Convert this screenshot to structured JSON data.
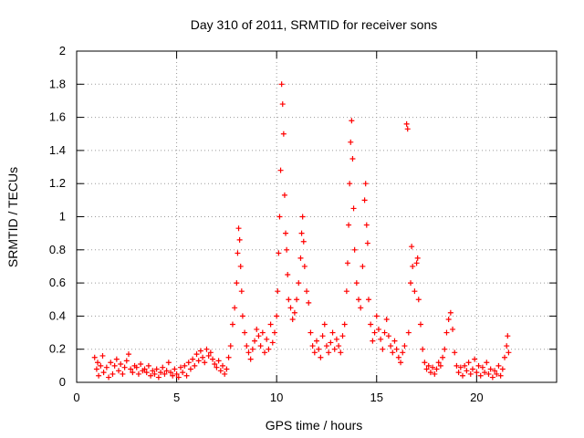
{
  "chart_data": {
    "type": "scatter",
    "title": "Day 310 of 2011, SRMTID for receiver sons",
    "xlabel": "GPS time / hours",
    "ylabel": "SRMTID / TECUs",
    "xlim": [
      0,
      24
    ],
    "ylim": [
      0,
      2
    ],
    "xticks": [
      0,
      5,
      10,
      15,
      20
    ],
    "yticks": [
      0,
      0.2,
      0.4,
      0.6,
      0.8,
      1,
      1.2,
      1.4,
      1.6,
      1.8,
      2
    ],
    "ytick_labels": [
      "0",
      "0.2",
      "0.4",
      "0.6",
      "0.8",
      "1",
      "1.2",
      "1.4",
      "1.6",
      "1.8",
      "2"
    ],
    "grid": true,
    "marker": "+",
    "color": "#ff0000",
    "series": [
      {
        "name": "SRMTID",
        "points": [
          [
            0.9,
            0.15
          ],
          [
            1.0,
            0.08
          ],
          [
            1.05,
            0.12
          ],
          [
            1.1,
            0.04
          ],
          [
            1.2,
            0.1
          ],
          [
            1.3,
            0.16
          ],
          [
            1.35,
            0.06
          ],
          [
            1.5,
            0.09
          ],
          [
            1.6,
            0.03
          ],
          [
            1.7,
            0.12
          ],
          [
            1.8,
            0.05
          ],
          [
            1.9,
            0.1
          ],
          [
            2.0,
            0.14
          ],
          [
            2.1,
            0.07
          ],
          [
            2.2,
            0.11
          ],
          [
            2.3,
            0.05
          ],
          [
            2.4,
            0.09
          ],
          [
            2.5,
            0.13
          ],
          [
            2.6,
            0.17
          ],
          [
            2.7,
            0.08
          ],
          [
            2.8,
            0.06
          ],
          [
            2.9,
            0.1
          ],
          [
            3.0,
            0.09
          ],
          [
            3.1,
            0.05
          ],
          [
            3.2,
            0.11
          ],
          [
            3.3,
            0.07
          ],
          [
            3.4,
            0.08
          ],
          [
            3.5,
            0.06
          ],
          [
            3.6,
            0.1
          ],
          [
            3.7,
            0.04
          ],
          [
            3.8,
            0.07
          ],
          [
            3.9,
            0.05
          ],
          [
            4.0,
            0.08
          ],
          [
            4.1,
            0.03
          ],
          [
            4.2,
            0.06
          ],
          [
            4.3,
            0.09
          ],
          [
            4.4,
            0.05
          ],
          [
            4.5,
            0.07
          ],
          [
            4.6,
            0.12
          ],
          [
            4.7,
            0.06
          ],
          [
            4.8,
            0.04
          ],
          [
            4.9,
            0.08
          ],
          [
            5.0,
            0.05
          ],
          [
            5.1,
            0.03
          ],
          [
            5.2,
            0.09
          ],
          [
            5.3,
            0.06
          ],
          [
            5.4,
            0.1
          ],
          [
            5.5,
            0.04
          ],
          [
            5.6,
            0.12
          ],
          [
            5.7,
            0.08
          ],
          [
            5.8,
            0.14
          ],
          [
            5.9,
            0.1
          ],
          [
            6.0,
            0.17
          ],
          [
            6.1,
            0.13
          ],
          [
            6.2,
            0.19
          ],
          [
            6.3,
            0.15
          ],
          [
            6.4,
            0.12
          ],
          [
            6.5,
            0.2
          ],
          [
            6.6,
            0.16
          ],
          [
            6.7,
            0.18
          ],
          [
            6.8,
            0.14
          ],
          [
            6.9,
            0.11
          ],
          [
            7.0,
            0.09
          ],
          [
            7.1,
            0.13
          ],
          [
            7.2,
            0.07
          ],
          [
            7.3,
            0.1
          ],
          [
            7.4,
            0.05
          ],
          [
            7.5,
            0.08
          ],
          [
            7.6,
            0.15
          ],
          [
            7.7,
            0.22
          ],
          [
            7.8,
            0.35
          ],
          [
            7.9,
            0.45
          ],
          [
            8.0,
            0.6
          ],
          [
            8.05,
            0.78
          ],
          [
            8.1,
            0.93
          ],
          [
            8.15,
            0.86
          ],
          [
            8.2,
            0.7
          ],
          [
            8.25,
            0.55
          ],
          [
            8.3,
            0.4
          ],
          [
            8.4,
            0.3
          ],
          [
            8.5,
            0.22
          ],
          [
            8.6,
            0.18
          ],
          [
            8.7,
            0.14
          ],
          [
            8.8,
            0.2
          ],
          [
            8.9,
            0.25
          ],
          [
            9.0,
            0.32
          ],
          [
            9.1,
            0.28
          ],
          [
            9.2,
            0.22
          ],
          [
            9.3,
            0.3
          ],
          [
            9.4,
            0.18
          ],
          [
            9.5,
            0.26
          ],
          [
            9.6,
            0.2
          ],
          [
            9.7,
            0.35
          ],
          [
            9.8,
            0.24
          ],
          [
            9.9,
            0.3
          ],
          [
            10.0,
            0.4
          ],
          [
            10.05,
            0.55
          ],
          [
            10.1,
            0.78
          ],
          [
            10.15,
            1.0
          ],
          [
            10.2,
            1.28
          ],
          [
            10.25,
            1.8
          ],
          [
            10.3,
            1.68
          ],
          [
            10.35,
            1.5
          ],
          [
            10.4,
            1.13
          ],
          [
            10.45,
            0.9
          ],
          [
            10.5,
            0.8
          ],
          [
            10.55,
            0.65
          ],
          [
            10.6,
            0.5
          ],
          [
            10.7,
            0.45
          ],
          [
            10.8,
            0.38
          ],
          [
            10.9,
            0.42
          ],
          [
            11.0,
            0.5
          ],
          [
            11.1,
            0.6
          ],
          [
            11.2,
            0.75
          ],
          [
            11.25,
            0.9
          ],
          [
            11.3,
            1.0
          ],
          [
            11.35,
            0.85
          ],
          [
            11.4,
            0.7
          ],
          [
            11.5,
            0.55
          ],
          [
            11.6,
            0.48
          ],
          [
            11.7,
            0.3
          ],
          [
            11.8,
            0.22
          ],
          [
            11.9,
            0.18
          ],
          [
            12.0,
            0.25
          ],
          [
            12.1,
            0.2
          ],
          [
            12.2,
            0.15
          ],
          [
            12.3,
            0.28
          ],
          [
            12.4,
            0.35
          ],
          [
            12.5,
            0.22
          ],
          [
            12.6,
            0.18
          ],
          [
            12.7,
            0.24
          ],
          [
            12.8,
            0.3
          ],
          [
            12.9,
            0.2
          ],
          [
            13.0,
            0.26
          ],
          [
            13.1,
            0.22
          ],
          [
            13.2,
            0.18
          ],
          [
            13.3,
            0.28
          ],
          [
            13.4,
            0.35
          ],
          [
            13.5,
            0.55
          ],
          [
            13.55,
            0.72
          ],
          [
            13.6,
            0.95
          ],
          [
            13.65,
            1.2
          ],
          [
            13.7,
            1.45
          ],
          [
            13.75,
            1.58
          ],
          [
            13.8,
            1.35
          ],
          [
            13.85,
            1.05
          ],
          [
            13.9,
            0.8
          ],
          [
            14.0,
            0.6
          ],
          [
            14.1,
            0.5
          ],
          [
            14.2,
            0.45
          ],
          [
            14.3,
            0.7
          ],
          [
            14.4,
            1.1
          ],
          [
            14.45,
            1.2
          ],
          [
            14.5,
            0.95
          ],
          [
            14.55,
            0.84
          ],
          [
            14.6,
            0.5
          ],
          [
            14.7,
            0.35
          ],
          [
            14.8,
            0.25
          ],
          [
            14.9,
            0.3
          ],
          [
            15.0,
            0.4
          ],
          [
            15.1,
            0.32
          ],
          [
            15.2,
            0.26
          ],
          [
            15.3,
            0.2
          ],
          [
            15.4,
            0.3
          ],
          [
            15.5,
            0.38
          ],
          [
            15.6,
            0.28
          ],
          [
            15.7,
            0.22
          ],
          [
            15.8,
            0.18
          ],
          [
            15.9,
            0.25
          ],
          [
            16.0,
            0.2
          ],
          [
            16.1,
            0.15
          ],
          [
            16.2,
            0.12
          ],
          [
            16.3,
            0.18
          ],
          [
            16.4,
            0.22
          ],
          [
            16.5,
            1.56
          ],
          [
            16.55,
            1.53
          ],
          [
            16.6,
            0.3
          ],
          [
            16.7,
            0.6
          ],
          [
            16.75,
            0.82
          ],
          [
            16.8,
            0.7
          ],
          [
            16.9,
            0.55
          ],
          [
            17.0,
            0.72
          ],
          [
            17.05,
            0.75
          ],
          [
            17.1,
            0.5
          ],
          [
            17.2,
            0.35
          ],
          [
            17.3,
            0.2
          ],
          [
            17.4,
            0.12
          ],
          [
            17.5,
            0.08
          ],
          [
            17.6,
            0.1
          ],
          [
            17.7,
            0.06
          ],
          [
            17.8,
            0.09
          ],
          [
            17.9,
            0.05
          ],
          [
            18.0,
            0.08
          ],
          [
            18.1,
            0.12
          ],
          [
            18.2,
            0.1
          ],
          [
            18.3,
            0.15
          ],
          [
            18.4,
            0.2
          ],
          [
            18.5,
            0.3
          ],
          [
            18.6,
            0.38
          ],
          [
            18.7,
            0.42
          ],
          [
            18.8,
            0.32
          ],
          [
            18.9,
            0.18
          ],
          [
            19.0,
            0.1
          ],
          [
            19.1,
            0.06
          ],
          [
            19.2,
            0.09
          ],
          [
            19.3,
            0.04
          ],
          [
            19.4,
            0.1
          ],
          [
            19.5,
            0.07
          ],
          [
            19.6,
            0.12
          ],
          [
            19.7,
            0.05
          ],
          [
            19.8,
            0.08
          ],
          [
            19.9,
            0.14
          ],
          [
            20.0,
            0.06
          ],
          [
            20.1,
            0.1
          ],
          [
            20.2,
            0.04
          ],
          [
            20.3,
            0.09
          ],
          [
            20.4,
            0.06
          ],
          [
            20.5,
            0.12
          ],
          [
            20.6,
            0.05
          ],
          [
            20.7,
            0.08
          ],
          [
            20.8,
            0.03
          ],
          [
            20.9,
            0.07
          ],
          [
            21.0,
            0.05
          ],
          [
            21.1,
            0.1
          ],
          [
            21.2,
            0.04
          ],
          [
            21.3,
            0.08
          ],
          [
            21.4,
            0.15
          ],
          [
            21.5,
            0.22
          ],
          [
            21.55,
            0.28
          ],
          [
            21.6,
            0.18
          ]
        ]
      }
    ]
  }
}
